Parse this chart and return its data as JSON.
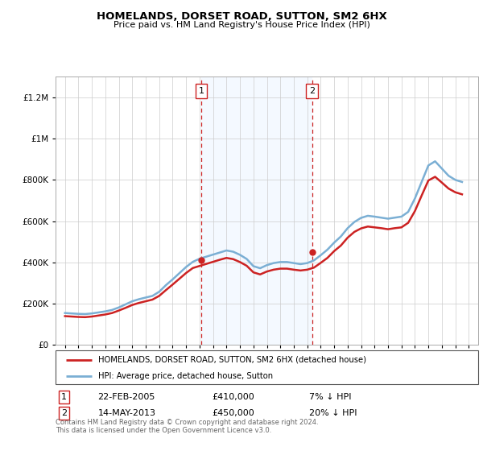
{
  "title": "HOMELANDS, DORSET ROAD, SUTTON, SM2 6HX",
  "subtitle": "Price paid vs. HM Land Registry's House Price Index (HPI)",
  "legend_line1": "HOMELANDS, DORSET ROAD, SUTTON, SM2 6HX (detached house)",
  "legend_line2": "HPI: Average price, detached house, Sutton",
  "footer": "Contains HM Land Registry data © Crown copyright and database right 2024.\nThis data is licensed under the Open Government Licence v3.0.",
  "sale1_date": "22-FEB-2005",
  "sale1_price": "£410,000",
  "sale1_hpi": "7% ↓ HPI",
  "sale1_year": 2005.13,
  "sale2_date": "14-MAY-2013",
  "sale2_price": "£450,000",
  "sale2_hpi": "20% ↓ HPI",
  "sale2_year": 2013.37,
  "hpi_color": "#7bafd4",
  "price_color": "#cc2222",
  "vline_color": "#cc2222",
  "shade_color": "#ddeeff",
  "ylim": [
    0,
    1300000
  ],
  "xlim_left": 1994.3,
  "xlim_right": 2025.7,
  "hpi_data": {
    "years": [
      1995,
      1995.5,
      1996,
      1996.5,
      1997,
      1997.5,
      1998,
      1998.5,
      1999,
      1999.5,
      2000,
      2000.5,
      2001,
      2001.5,
      2002,
      2002.5,
      2003,
      2003.5,
      2004,
      2004.5,
      2005,
      2005.5,
      2006,
      2006.5,
      2007,
      2007.5,
      2008,
      2008.5,
      2009,
      2009.5,
      2010,
      2010.5,
      2011,
      2011.5,
      2012,
      2012.5,
      2013,
      2013.5,
      2014,
      2014.5,
      2015,
      2015.5,
      2016,
      2016.5,
      2017,
      2017.5,
      2018,
      2018.5,
      2019,
      2019.5,
      2020,
      2020.5,
      2021,
      2021.5,
      2022,
      2022.5,
      2023,
      2023.5,
      2024,
      2024.5
    ],
    "values": [
      155000,
      153000,
      151000,
      150000,
      153000,
      158000,
      163000,
      170000,
      182000,
      197000,
      212000,
      222000,
      230000,
      238000,
      258000,
      290000,
      318000,
      348000,
      378000,
      403000,
      418000,
      428000,
      438000,
      448000,
      458000,
      452000,
      437000,
      417000,
      382000,
      372000,
      387000,
      397000,
      402000,
      402000,
      397000,
      392000,
      397000,
      410000,
      435000,
      462000,
      496000,
      526000,
      566000,
      596000,
      616000,
      626000,
      622000,
      617000,
      612000,
      617000,
      622000,
      645000,
      710000,
      790000,
      870000,
      890000,
      855000,
      820000,
      800000,
      790000
    ]
  },
  "price_data": {
    "years": [
      1995,
      1995.5,
      1996,
      1996.5,
      1997,
      1997.5,
      1998,
      1998.5,
      1999,
      1999.5,
      2000,
      2000.5,
      2001,
      2001.5,
      2002,
      2002.5,
      2003,
      2003.5,
      2004,
      2004.5,
      2005,
      2005.5,
      2006,
      2006.5,
      2007,
      2007.5,
      2008,
      2008.5,
      2009,
      2009.5,
      2010,
      2010.5,
      2011,
      2011.5,
      2012,
      2012.5,
      2013,
      2013.5,
      2014,
      2014.5,
      2015,
      2015.5,
      2016,
      2016.5,
      2017,
      2017.5,
      2018,
      2018.5,
      2019,
      2019.5,
      2020,
      2020.5,
      2021,
      2021.5,
      2022,
      2022.5,
      2023,
      2023.5,
      2024,
      2024.5
    ],
    "values": [
      140000,
      138000,
      136000,
      135000,
      138000,
      143000,
      148000,
      155000,
      167000,
      180000,
      194000,
      204000,
      212000,
      220000,
      238000,
      266000,
      293000,
      321000,
      349000,
      373000,
      383000,
      393000,
      403000,
      413000,
      422000,
      416000,
      402000,
      384000,
      352000,
      342000,
      356000,
      365000,
      370000,
      370000,
      365000,
      361000,
      365000,
      375000,
      398000,
      422000,
      455000,
      482000,
      520000,
      548000,
      565000,
      574000,
      570000,
      566000,
      561000,
      566000,
      570000,
      592000,
      649000,
      724000,
      797000,
      815000,
      787000,
      758000,
      740000,
      730000
    ]
  }
}
